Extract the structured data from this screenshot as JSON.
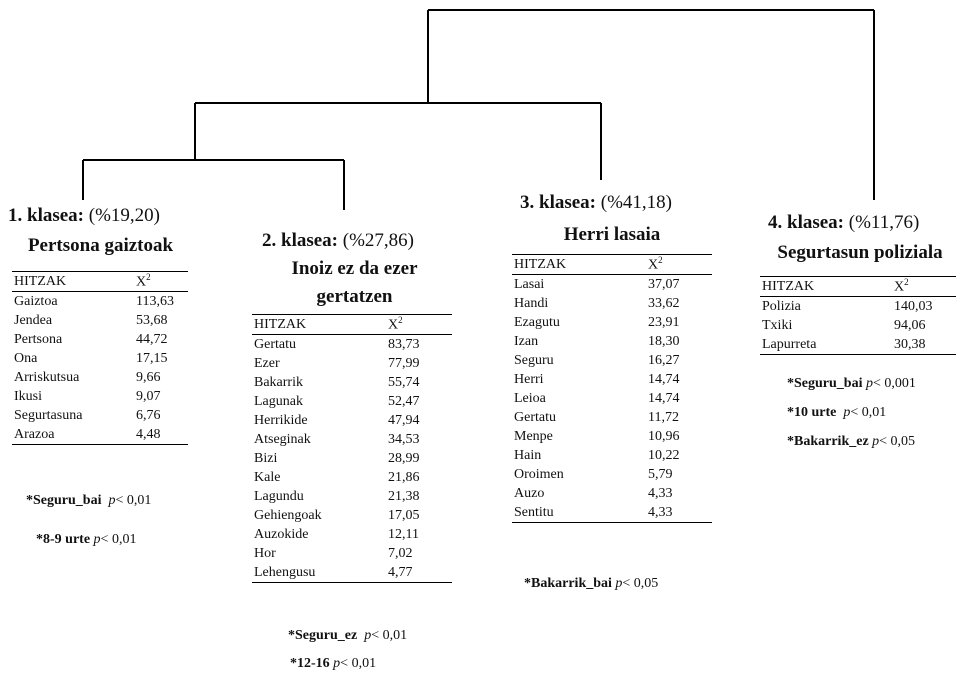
{
  "columns": {
    "word": "HITZAK",
    "chi_base": "X",
    "chi_sup": "2"
  },
  "classes": [
    {
      "title": "1. klasea:",
      "pct": "(%19,20)",
      "name": [
        "Pertsona gaiztoak"
      ],
      "rows": [
        {
          "w": "Gaiztoa",
          "v": "113,63"
        },
        {
          "w": "Jendea",
          "v": "53,68"
        },
        {
          "w": "Pertsona",
          "v": "44,72"
        },
        {
          "w": "Ona",
          "v": "17,15"
        },
        {
          "w": "Arriskutsua",
          "v": "9,66"
        },
        {
          "w": "Ikusi",
          "v": "9,07"
        },
        {
          "w": "Segurtasuna",
          "v": "6,76"
        },
        {
          "w": "Arazoa",
          "v": "4,48"
        }
      ],
      "notes": [
        {
          "b": "*Seguru_bai",
          "p": "p",
          "t": "< 0,01"
        },
        {
          "b": "*8-9 urte",
          "p": "p",
          "t": "< 0,01"
        }
      ]
    },
    {
      "title": "2. klasea:",
      "pct": "(%27,86)",
      "name": [
        "Inoiz ez da ezer",
        "gertatzen"
      ],
      "rows": [
        {
          "w": "Gertatu",
          "v": "83,73"
        },
        {
          "w": "Ezer",
          "v": "77,99"
        },
        {
          "w": "Bakarrik",
          "v": "55,74"
        },
        {
          "w": "Lagunak",
          "v": "52,47"
        },
        {
          "w": "Herrikide",
          "v": "47,94"
        },
        {
          "w": "Atseginak",
          "v": "34,53"
        },
        {
          "w": "Bizi",
          "v": "28,99"
        },
        {
          "w": "Kale",
          "v": "21,86"
        },
        {
          "w": "Lagundu",
          "v": "21,38"
        },
        {
          "w": "Gehiengoak",
          "v": "17,05"
        },
        {
          "w": "Auzokide",
          "v": "12,11"
        },
        {
          "w": "Hor",
          "v": "7,02"
        },
        {
          "w": "Lehengusu",
          "v": "4,77"
        }
      ],
      "notes": [
        {
          "b": "*Seguru_ez",
          "p": "p",
          "t": "< 0,01"
        },
        {
          "b": "*12-16",
          "p": "p",
          "t": "< 0,01"
        }
      ]
    },
    {
      "title": "3. klasea:",
      "pct": "(%41,18)",
      "name": [
        "Herri lasaia"
      ],
      "rows": [
        {
          "w": "Lasai",
          "v": "37,07"
        },
        {
          "w": "Handi",
          "v": "33,62"
        },
        {
          "w": "Ezagutu",
          "v": "23,91"
        },
        {
          "w": "Izan",
          "v": "18,30"
        },
        {
          "w": "Seguru",
          "v": "16,27"
        },
        {
          "w": "Herri",
          "v": "14,74"
        },
        {
          "w": "Leioa",
          "v": "14,74"
        },
        {
          "w": "Gertatu",
          "v": "11,72"
        },
        {
          "w": "Menpe",
          "v": "10,96"
        },
        {
          "w": "Hain",
          "v": "10,22"
        },
        {
          "w": "Oroimen",
          "v": "5,79"
        },
        {
          "w": "Auzo",
          "v": "4,33"
        },
        {
          "w": "Sentitu",
          "v": "4,33"
        }
      ],
      "notes": [
        {
          "b": "*Bakarrik_bai",
          "p": "p",
          "t": "< 0,05"
        }
      ]
    },
    {
      "title": "4. klasea:",
      "pct": "(%11,76)",
      "name": [
        "Segurtasun poliziala"
      ],
      "rows": [
        {
          "w": "Polizia",
          "v": "140,03"
        },
        {
          "w": "Txiki",
          "v": "94,06"
        },
        {
          "w": "Lapurreta",
          "v": "30,38"
        }
      ],
      "notes": [
        {
          "b": "*Seguru_bai",
          "p": "p",
          "t": "< 0,001"
        },
        {
          "b": "*10 urte",
          "p": "p",
          "t": "< 0,01"
        },
        {
          "b": "*Bakarrik_ez",
          "p": "p",
          "t": "< 0,05"
        }
      ]
    }
  ]
}
